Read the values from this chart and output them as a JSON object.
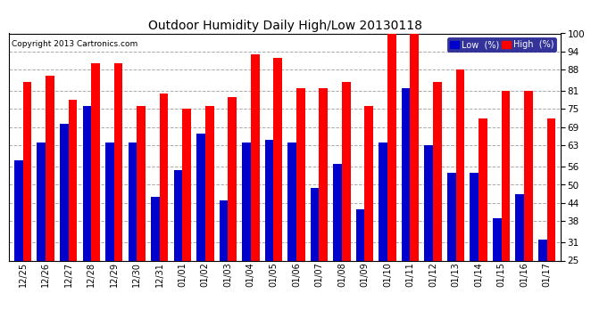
{
  "title": "Outdoor Humidity Daily High/Low 20130118",
  "copyright": "Copyright 2013 Cartronics.com",
  "categories": [
    "12/25",
    "12/26",
    "12/27",
    "12/28",
    "12/29",
    "12/30",
    "12/31",
    "01/01",
    "01/02",
    "01/03",
    "01/04",
    "01/05",
    "01/06",
    "01/07",
    "01/08",
    "01/09",
    "01/10",
    "01/11",
    "01/12",
    "01/13",
    "01/14",
    "01/15",
    "01/16",
    "01/17"
  ],
  "high_values": [
    84,
    86,
    78,
    90,
    90,
    76,
    80,
    75,
    76,
    79,
    93,
    92,
    82,
    82,
    84,
    76,
    100,
    100,
    84,
    88,
    72,
    81,
    81,
    72
  ],
  "low_values": [
    58,
    64,
    70,
    76,
    64,
    64,
    46,
    55,
    67,
    45,
    64,
    65,
    64,
    49,
    57,
    42,
    64,
    82,
    63,
    54,
    54,
    39,
    47,
    32
  ],
  "high_color": "#ff0000",
  "low_color": "#0000cc",
  "bg_color": "#ffffff",
  "grid_color": "#aaaaaa",
  "yticks": [
    25,
    31,
    38,
    44,
    50,
    56,
    63,
    69,
    75,
    81,
    88,
    94,
    100
  ],
  "ymin": 25,
  "ymax": 100,
  "bar_width": 0.38,
  "legend_low_label": "Low  (%)",
  "legend_high_label": "High  (%)"
}
